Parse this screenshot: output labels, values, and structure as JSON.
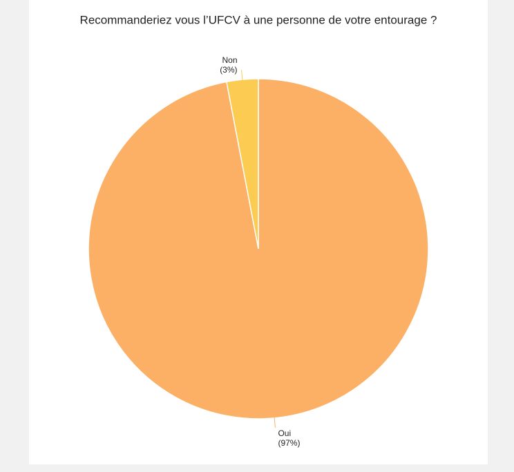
{
  "chart_data": {
    "type": "pie",
    "title": "Recommanderiez vous l’UFCV à une personne de votre entourage ?",
    "categories": [
      "Oui",
      "Non"
    ],
    "values": [
      97,
      3
    ],
    "value_labels": [
      "(97%)",
      "(3%)"
    ],
    "colors": [
      "#fbb066",
      "#fccb52"
    ]
  }
}
